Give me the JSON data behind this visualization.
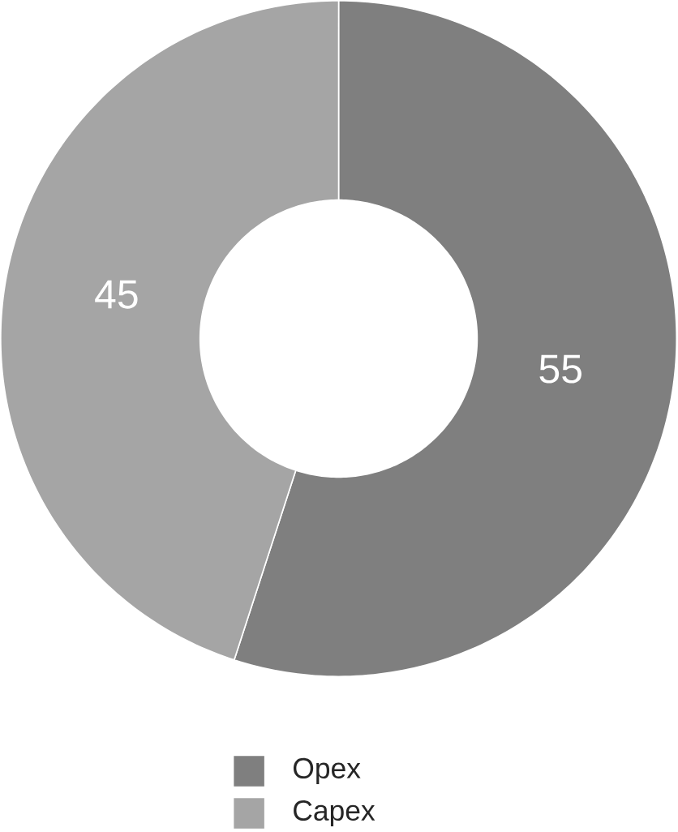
{
  "chart_data": {
    "type": "donut",
    "categories": [
      "Opex",
      "Capex"
    ],
    "values": [
      55,
      45
    ],
    "colors": [
      "#7f7f7f",
      "#a5a5a5"
    ],
    "data_labels": true,
    "legend": "bottom"
  }
}
